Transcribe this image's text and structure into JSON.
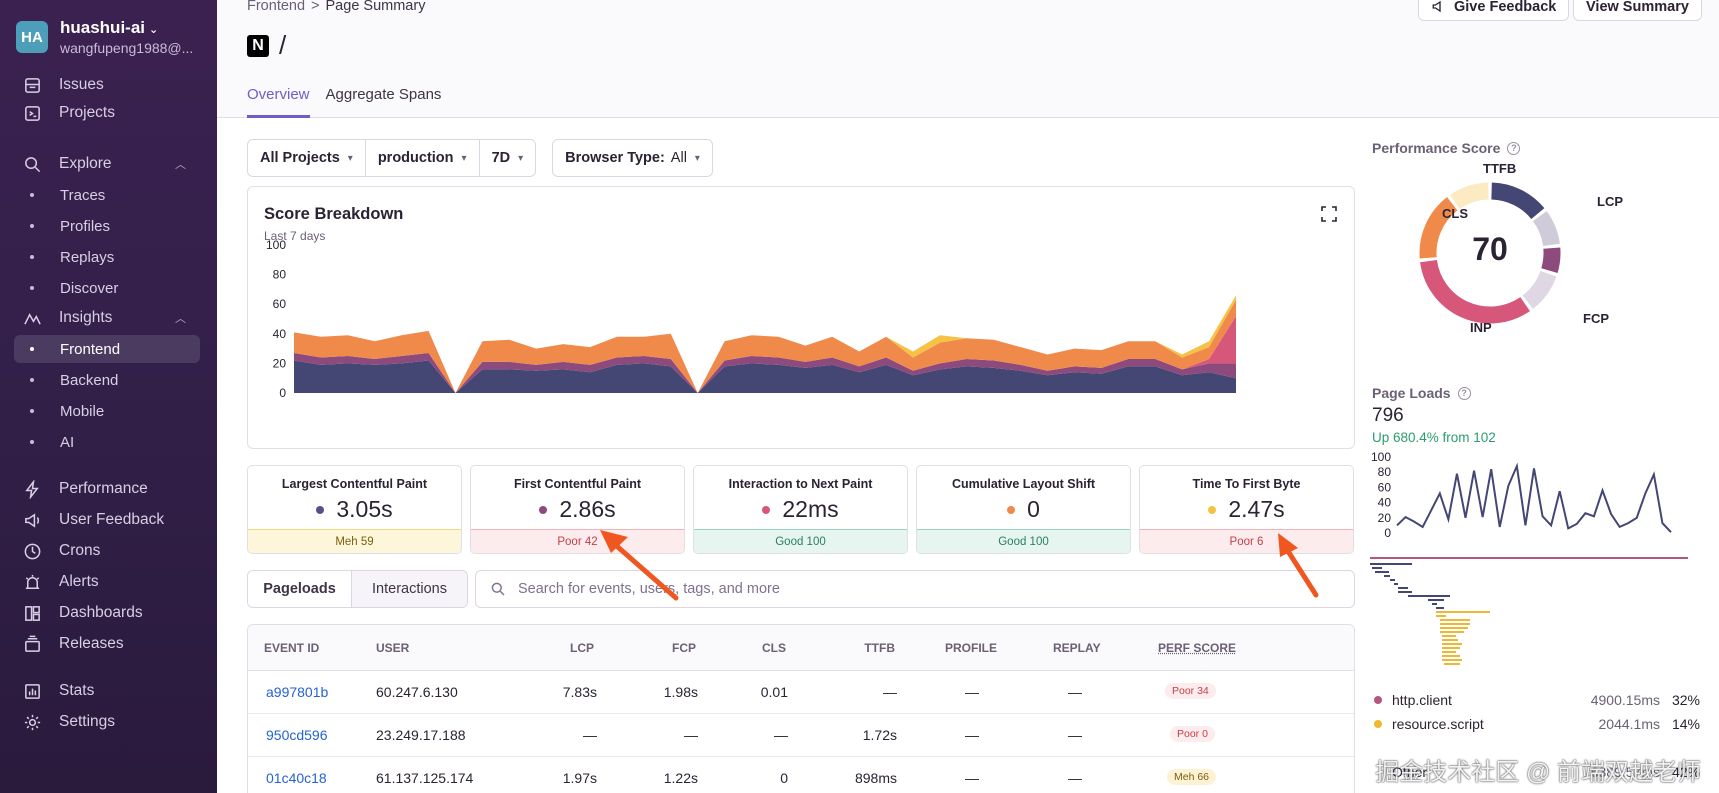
{
  "org": {
    "initials": "HA",
    "name": "huashui-ai",
    "email": "wangfupeng1988@..."
  },
  "nav": {
    "issues": "Issues",
    "projects": "Projects",
    "explore": "Explore",
    "explore_items": [
      "Traces",
      "Profiles",
      "Replays",
      "Discover"
    ],
    "insights": "Insights",
    "insights_items": [
      "Frontend",
      "Backend",
      "Mobile",
      "AI"
    ],
    "performance": "Performance",
    "user_feedback": "User Feedback",
    "crons": "Crons",
    "alerts": "Alerts",
    "dashboards": "Dashboards",
    "releases": "Releases",
    "stats": "Stats",
    "settings": "Settings"
  },
  "header": {
    "breadcrumb": [
      "Frontend",
      "Page Summary"
    ],
    "breadcrumb_sep": ">",
    "logo_letter": "N",
    "title": "/",
    "give_feedback": "Give Feedback",
    "view_summary": "View Summary",
    "tabs": [
      "Overview",
      "Aggregate Spans"
    ]
  },
  "filters": {
    "projects": "All Projects",
    "environment": "production",
    "period": "7D",
    "browser_label": "Browser Type:",
    "browser_value": "All"
  },
  "score_breakdown": {
    "title": "Score Breakdown",
    "subtitle": "Last 7 days",
    "y_ticks": [
      "100",
      "80",
      "60",
      "40",
      "20",
      "0"
    ]
  },
  "vitals": [
    {
      "name": "Largest Contentful Paint",
      "value": "3.05s",
      "badge": "Meh 59",
      "status": "meh",
      "dot": "#5c4d8a"
    },
    {
      "name": "First Contentful Paint",
      "value": "2.86s",
      "badge": "Poor 42",
      "status": "poor",
      "dot": "#8d4a7d"
    },
    {
      "name": "Interaction to Next Paint",
      "value": "22ms",
      "badge": "Good 100",
      "status": "good",
      "dot": "#d6577a"
    },
    {
      "name": "Cumulative Layout Shift",
      "value": "0",
      "badge": "Good 100",
      "status": "good",
      "dot": "#f08a4b"
    },
    {
      "name": "Time To First Byte",
      "value": "2.47s",
      "badge": "Poor 6",
      "status": "poor",
      "dot": "#f5c246"
    }
  ],
  "segment": {
    "pageloads": "Pageloads",
    "interactions": "Interactions"
  },
  "search_placeholder": "Search for events, users, tags, and more",
  "table": {
    "headers": [
      "EVENT ID",
      "USER",
      "LCP",
      "FCP",
      "CLS",
      "TTFB",
      "PROFILE",
      "REPLAY",
      "PERF SCORE"
    ],
    "rows": [
      {
        "id": "a997801b",
        "user": "60.247.6.130",
        "lcp": "7.83s",
        "fcp": "1.98s",
        "cls": "0.01",
        "ttfb": "—",
        "profile": "—",
        "replay": "—",
        "score": "Poor 34",
        "status": "poor"
      },
      {
        "id": "950cd596",
        "user": "23.249.17.188",
        "lcp": "—",
        "fcp": "—",
        "cls": "—",
        "ttfb": "1.72s",
        "profile": "—",
        "replay": "—",
        "score": "Poor 0",
        "status": "poor"
      },
      {
        "id": "01c40c18",
        "user": "61.137.125.174",
        "lcp": "1.97s",
        "fcp": "1.22s",
        "cls": "0",
        "ttfb": "898ms",
        "profile": "—",
        "replay": "—",
        "score": "Meh 66",
        "status": "meh"
      }
    ]
  },
  "perf_score": {
    "label": "Performance Score",
    "value": "70",
    "labels": [
      "TTFB",
      "LCP",
      "CLS",
      "INP",
      "FCP"
    ]
  },
  "page_loads": {
    "label": "Page Loads",
    "count": "796",
    "change": "Up 680.4% from 102",
    "y_ticks": [
      "100",
      "80",
      "60",
      "40",
      "20",
      "0"
    ]
  },
  "span_legend": [
    {
      "name": "http.client",
      "duration": "4900.15ms",
      "pct": "32%",
      "color": "#b5567f"
    },
    {
      "name": "resource.script",
      "duration": "2044.1ms",
      "pct": "14%",
      "color": "#f0b732"
    },
    {
      "name": "Other",
      "duration": "6389.57ms",
      "pct": "42%",
      "color": "#ffffff"
    }
  ],
  "watermark": "掘金技术社区 @ 前端双越老师",
  "chart_data": [
    {
      "type": "area",
      "title": "Score Breakdown",
      "subtitle": "Last 7 days",
      "ylim": [
        0,
        100
      ],
      "series": [
        {
          "name": "LCP",
          "color": "#444674",
          "values": [
            22,
            19,
            20,
            19,
            20,
            22,
            0,
            16,
            16,
            15,
            16,
            14,
            19,
            20,
            18,
            0,
            18,
            20,
            19,
            17,
            19,
            14,
            19,
            12,
            16,
            18,
            17,
            15,
            12,
            14,
            13,
            18,
            18,
            12,
            14,
            10
          ]
        },
        {
          "name": "FCP",
          "color": "#8d4a7d",
          "values": [
            5,
            5,
            5,
            4,
            5,
            5,
            0,
            5,
            5,
            4,
            5,
            5,
            5,
            5,
            5,
            0,
            4,
            5,
            5,
            4,
            5,
            4,
            5,
            3,
            4,
            5,
            5,
            4,
            3,
            4,
            4,
            5,
            5,
            4,
            6,
            10
          ]
        },
        {
          "name": "INP",
          "color": "#d6577a",
          "values": [
            0,
            0,
            0,
            0,
            0,
            0,
            0,
            0,
            0,
            0,
            0,
            0,
            0,
            0,
            0,
            0,
            0,
            0,
            0,
            0,
            0,
            0,
            0,
            0,
            0,
            0,
            0,
            0,
            0,
            0,
            0,
            0,
            0,
            0,
            3,
            32
          ]
        },
        {
          "name": "CLS",
          "color": "#f08a4b",
          "values": [
            14,
            14,
            14,
            12,
            14,
            15,
            0,
            14,
            15,
            11,
            12,
            12,
            14,
            13,
            17,
            0,
            13,
            14,
            14,
            11,
            14,
            10,
            14,
            9,
            14,
            14,
            14,
            12,
            11,
            12,
            12,
            12,
            12,
            8,
            8,
            11
          ]
        },
        {
          "name": "TTFB",
          "color": "#f5c246",
          "values": [
            0,
            0,
            0,
            0,
            0,
            0,
            0,
            0,
            0,
            0,
            0,
            0,
            0,
            0,
            0,
            0,
            0,
            0,
            0,
            0,
            0,
            0,
            0,
            4,
            5,
            0,
            0,
            0,
            0,
            0,
            0,
            0,
            0,
            2,
            4,
            3
          ]
        }
      ]
    },
    {
      "type": "pie",
      "title": "Performance Score",
      "total": 70,
      "slices": [
        {
          "name": "LCP",
          "value": 13,
          "color": "#444674"
        },
        {
          "name": "LCP remaining",
          "value": 8,
          "color": "#cfcbd9"
        },
        {
          "name": "FCP",
          "value": 6,
          "color": "#8d4a7d"
        },
        {
          "name": "FCP remaining",
          "value": 9,
          "color": "#dfd8e4"
        },
        {
          "name": "INP",
          "value": 30,
          "color": "#d6577a"
        },
        {
          "name": "CLS",
          "value": 15,
          "color": "#f08a4b"
        },
        {
          "name": "TTFB",
          "value": 9,
          "color": "#fbeac2"
        }
      ]
    },
    {
      "type": "line",
      "title": "Page Loads",
      "ylim": [
        0,
        100
      ],
      "values": [
        10,
        21,
        15,
        8,
        30,
        52,
        18,
        78,
        20,
        82,
        21,
        84,
        8,
        62,
        88,
        10,
        85,
        22,
        10,
        55,
        6,
        12,
        26,
        22,
        56,
        25,
        8,
        13,
        20,
        52,
        77,
        13,
        1
      ],
      "color": "#444674"
    }
  ]
}
